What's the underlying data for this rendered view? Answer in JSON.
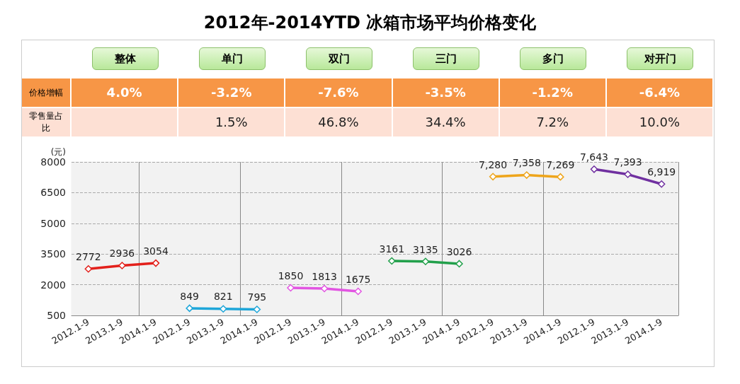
{
  "chart_data": [
    {
      "type": "other",
      "title": "2012年-2014YTD 冰箱市场平均价格变化",
      "categories": [
        "整体",
        "单门",
        "双门",
        "三门",
        "多门",
        "对开门"
      ],
      "series": [
        {
          "name": "价格增幅",
          "color": "#f79646",
          "values": [
            4.0,
            -3.2,
            -7.6,
            -3.5,
            -1.2,
            -6.4
          ],
          "value_labels": [
            "4.0%",
            "-3.2%",
            "-7.6%",
            "-3.5%",
            "-1.2%",
            "-6.4%"
          ]
        },
        {
          "name": "零售量占比",
          "color": "#fde0d4",
          "values": [
            null,
            1.5,
            46.8,
            34.4,
            7.2,
            10.0
          ],
          "value_labels": [
            null,
            "1.5%",
            "46.8%",
            "34.4%",
            "7.2%",
            "10.0%"
          ]
        }
      ]
    },
    {
      "type": "line",
      "ylabel": "(元)",
      "categories": [
        "2012.1-9",
        "2013.1-9",
        "2014.1-9",
        "2012.1-9",
        "2013.1-9",
        "2014.1-9",
        "2012.1-9",
        "2013.1-9",
        "2014.1-9",
        "2012.1-9",
        "2013.1-9",
        "2014.1-9",
        "2012.1-9",
        "2013.1-9",
        "2014.1-9",
        "2012.1-9",
        "2013.1-9",
        "2014.1-9"
      ],
      "ylim": [
        500,
        8000
      ],
      "yticks": [
        500,
        2000,
        3500,
        5000,
        6500,
        8000
      ],
      "grid": "y",
      "marker": "diamond",
      "series": [
        {
          "color": "#e3201b",
          "values": [
            2772,
            2936,
            3054,
            null,
            null,
            null,
            null,
            null,
            null,
            null,
            null,
            null,
            null,
            null,
            null,
            null,
            null,
            null
          ],
          "value_labels": [
            "2772",
            "2936",
            "3054",
            null,
            null,
            null,
            null,
            null,
            null,
            null,
            null,
            null,
            null,
            null,
            null,
            null,
            null,
            null
          ]
        },
        {
          "color": "#1ea6d9",
          "values": [
            null,
            null,
            null,
            849,
            821,
            795,
            null,
            null,
            null,
            null,
            null,
            null,
            null,
            null,
            null,
            null,
            null,
            null
          ],
          "value_labels": [
            null,
            null,
            null,
            "849",
            "821",
            "795",
            null,
            null,
            null,
            null,
            null,
            null,
            null,
            null,
            null,
            null,
            null,
            null
          ]
        },
        {
          "color": "#e255e2",
          "values": [
            null,
            null,
            null,
            null,
            null,
            null,
            1850,
            1813,
            1675,
            null,
            null,
            null,
            null,
            null,
            null,
            null,
            null,
            null
          ],
          "value_labels": [
            null,
            null,
            null,
            null,
            null,
            null,
            "1850",
            "1813",
            "1675",
            null,
            null,
            null,
            null,
            null,
            null,
            null,
            null,
            null
          ]
        },
        {
          "color": "#22a04b",
          "values": [
            null,
            null,
            null,
            null,
            null,
            null,
            null,
            null,
            null,
            3161,
            3135,
            3026,
            null,
            null,
            null,
            null,
            null,
            null
          ],
          "value_labels": [
            null,
            null,
            null,
            null,
            null,
            null,
            null,
            null,
            null,
            "3161",
            "3135",
            "3026",
            null,
            null,
            null,
            null,
            null,
            null
          ]
        },
        {
          "color": "#eea51b",
          "values": [
            null,
            null,
            null,
            null,
            null,
            null,
            null,
            null,
            null,
            null,
            null,
            null,
            7280,
            7358,
            7269,
            null,
            null,
            null
          ],
          "value_labels": [
            null,
            null,
            null,
            null,
            null,
            null,
            null,
            null,
            null,
            null,
            null,
            null,
            "7,280",
            "7,358",
            "7,269",
            null,
            null,
            null
          ]
        },
        {
          "color": "#7030a0",
          "values": [
            null,
            null,
            null,
            null,
            null,
            null,
            null,
            null,
            null,
            null,
            null,
            null,
            null,
            null,
            null,
            7643,
            7393,
            6919
          ],
          "value_labels": [
            null,
            null,
            null,
            null,
            null,
            null,
            null,
            null,
            null,
            null,
            null,
            null,
            null,
            null,
            null,
            "7,643",
            "7,393",
            "6,919"
          ]
        }
      ]
    }
  ]
}
